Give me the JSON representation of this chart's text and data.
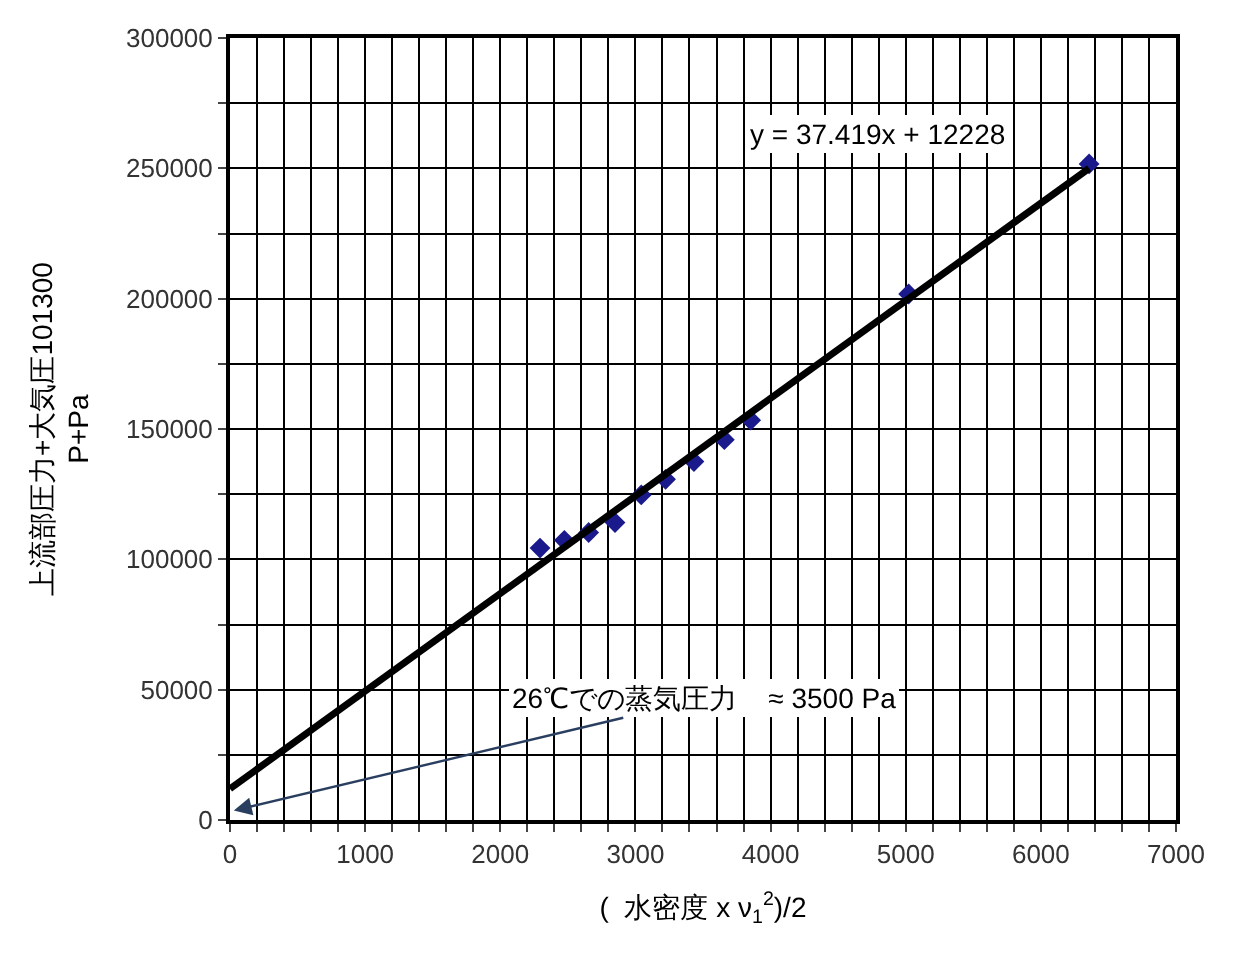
{
  "chart_data": {
    "type": "scatter",
    "xlabel": "(  水密度 x ν$_{1}$$^{2}$)/2",
    "ylabel": "上流部圧力+大気圧101300\nP+Pa",
    "series": [
      {
        "color": "#1a1a8c",
        "marker": "diamond",
        "x": [
          2294,
          2474,
          2654,
          2849,
          3043,
          3223,
          3433,
          3658,
          3853,
          5022,
          6357
        ],
        "values": [
          104300,
          107300,
          110300,
          114100,
          124700,
          130700,
          137500,
          145900,
          153400,
          201800,
          251700
        ]
      },
      {
        "type": "line",
        "color": "#000000",
        "marker": "none",
        "x": [
          0,
          6357
        ],
        "values": [
          12000,
          250000
        ]
      }
    ],
    "xlim": [
      0,
      7000
    ],
    "ylim": [
      0,
      300000
    ],
    "xticks": [
      0,
      {
        "value": 200,
        "label": null
      },
      {
        "value": 400,
        "label": null
      },
      {
        "value": 600,
        "label": null
      },
      {
        "value": 800,
        "label": null
      },
      1000,
      {
        "value": 1200,
        "label": null
      },
      {
        "value": 1400,
        "label": null
      },
      {
        "value": 1600,
        "label": null
      },
      {
        "value": 1800,
        "label": null
      },
      2000,
      {
        "value": 2200,
        "label": null
      },
      {
        "value": 2400,
        "label": null
      },
      {
        "value": 2600,
        "label": null
      },
      {
        "value": 2800,
        "label": null
      },
      3000,
      {
        "value": 3200,
        "label": null
      },
      {
        "value": 3400,
        "label": null
      },
      {
        "value": 3600,
        "label": null
      },
      {
        "value": 3800,
        "label": null
      },
      4000,
      {
        "value": 4200,
        "label": null
      },
      {
        "value": 4400,
        "label": null
      },
      {
        "value": 4600,
        "label": null
      },
      {
        "value": 4800,
        "label": null
      },
      5000,
      {
        "value": 5200,
        "label": null
      },
      {
        "value": 5400,
        "label": null
      },
      {
        "value": 5600,
        "label": null
      },
      {
        "value": 5800,
        "label": null
      },
      6000,
      {
        "value": 6200,
        "label": null
      },
      {
        "value": 6400,
        "label": null
      },
      {
        "value": 6600,
        "label": null
      },
      {
        "value": 6800,
        "label": null
      },
      7000
    ],
    "yticks": [
      0,
      {
        "value": 25000,
        "label": null
      },
      50000,
      {
        "value": 75000,
        "label": null
      },
      100000,
      {
        "value": 125000,
        "label": null
      },
      150000,
      {
        "value": 175000,
        "label": null
      },
      200000,
      {
        "value": 225000,
        "label": null
      },
      250000,
      {
        "value": 275000,
        "label": null
      },
      300000
    ],
    "grid": true,
    "annotations": [
      "y = 37.419x + 12228",
      "26℃での蒸気圧力    ≈ 3500 Pa"
    ]
  }
}
